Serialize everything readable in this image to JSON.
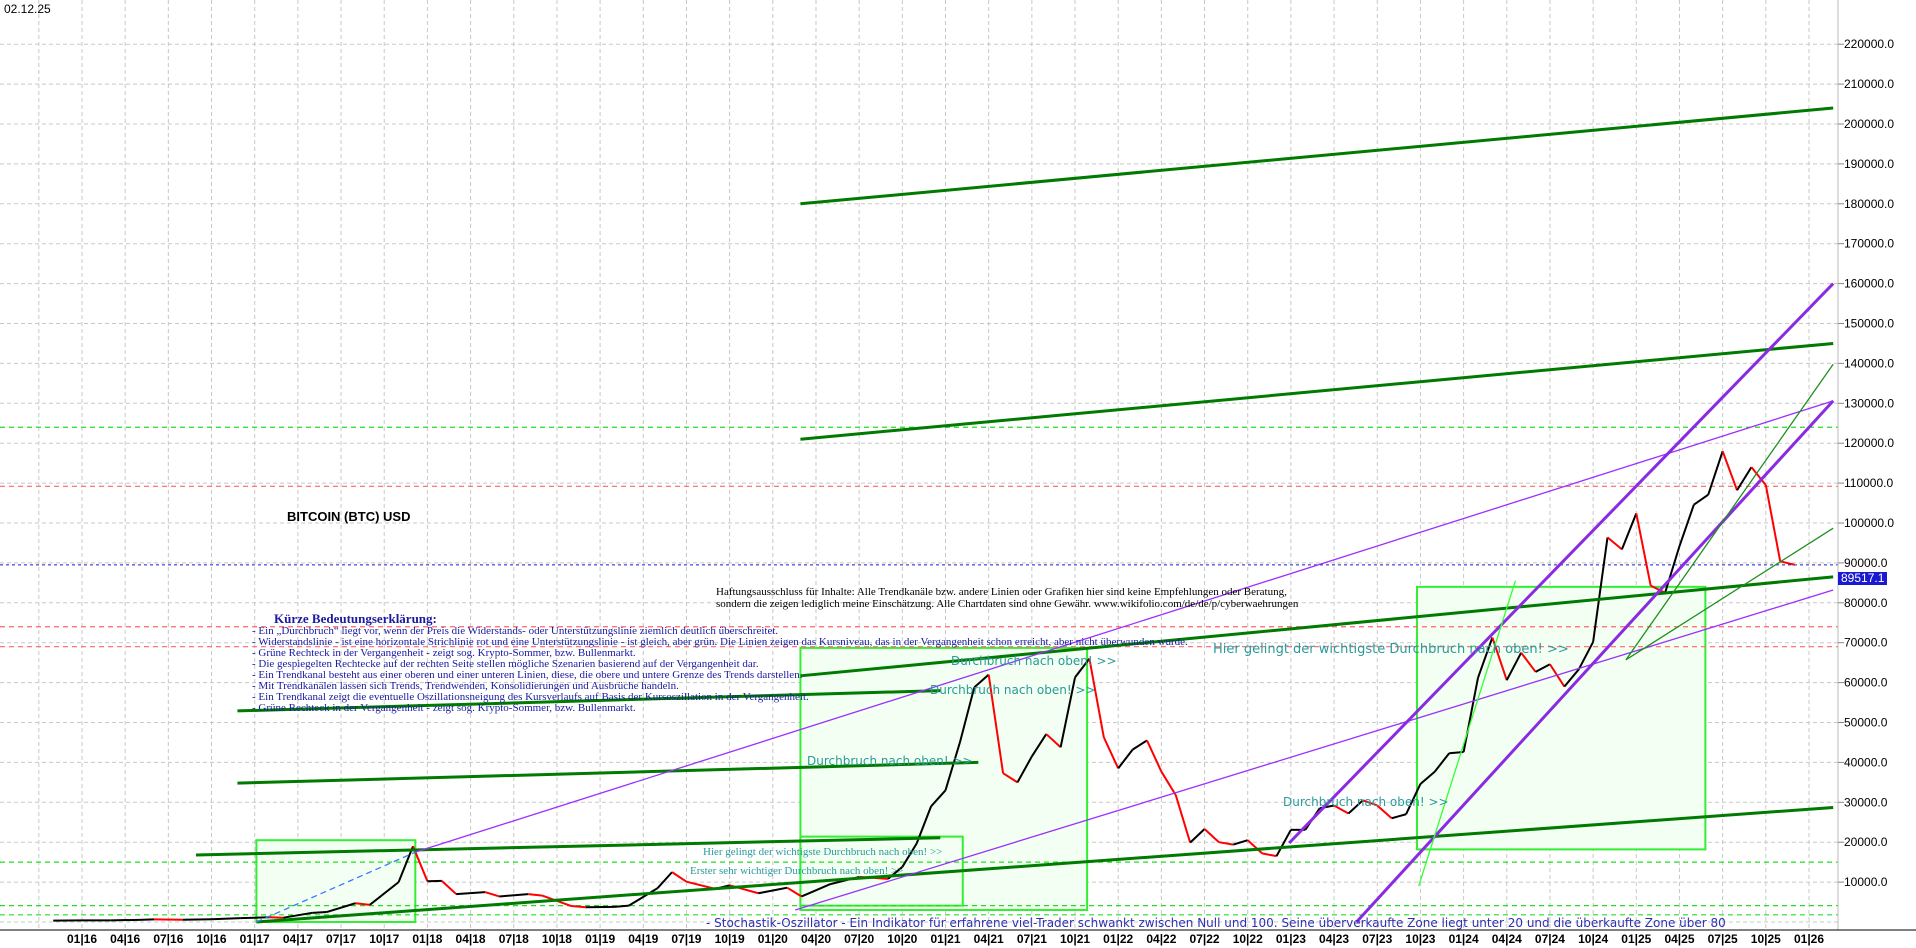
{
  "header": {
    "date": "02.12.25",
    "title": "BITCOIN (BTC) USD"
  },
  "legend": {
    "title": "Kürze Bedeutungserklärung:",
    "lines": [
      "- Ein „Durchbruch“ liegt vor, wenn der Preis die Widerstands- oder Unterstützungslinie ziemlich deutlich überschreitet.",
      "- Widerstandslinie - ist eine horizontale Strichlinie rot und eine Unterstützungslinie - ist gleich, aber grün. Die Linien zeigen das Kursniveau, das in der Vergangenheit schon erreicht, aber nicht überwunden wurde.",
      "- Grüne Rechteck in der Vergangenheit - zeigt sog. Krypto-Sommer, bzw. Bullenmarkt.",
      "- Die gespiegelten Rechtecke auf der rechten Seite stellen mögliche Szenarien basierend auf der Vergangenheit dar.",
      "- Ein Trendkanal besteht aus einer oberen und einer unteren Linien, diese, die obere und untere Grenze des Trends darstellen.",
      "- Mit Trendkanälen lassen sich Trends, Trendwenden, Konsolidierungen und Ausbrüche handeln.",
      " - Ein Trendkanal  zeigt die eventuelle Oszillationsneigung  des Kursverlaufs  auf Basis der Kursoszillation in der Vergangenheit.",
      " - Grüne Rechteck in der Vergangenheit - zeigt sog. Krypto-Sommer, bzw. Bullenmarkt."
    ]
  },
  "disclaimer": [
    "Haftungsausschluss für Inhalte: Alle Trendkanäle bzw. andere Linien oder Grafiken hier sind keine Empfehlungen oder Beratung,",
    "sondern die zeigen lediglich meine  Einschätzung. Alle Chartdaten sind ohne Gewähr.  www.wikifolio.com/de/de/p/cyberwaehrungen"
  ],
  "annotations": {
    "breakout": "Durchbruch nach oben! >>",
    "most_important": "Hier gelingt der wichtigste Durchbruch nach oben! >>",
    "first_important": "Erster sehr wichtiger Durchbruch nach oben! >>",
    "stochastic": "- Stochastik-Oszillator - Ein Indikator  für erfahrene viel-Trader  schwankt zwischen Null und 100. Seine überverkaufte Zone  liegt unter 20 und die überkaufte Zone  über 80"
  },
  "chart_data": {
    "type": "line",
    "title": "BITCOIN (BTC) USD",
    "last_price": "89517.1",
    "ylim": [
      0,
      225000
    ],
    "xlim": [
      "2015-11",
      "2026-04"
    ],
    "grid": true,
    "y_ticks": [
      "10000.0",
      "20000.0",
      "30000.0",
      "40000.0",
      "50000.0",
      "60000.0",
      "70000.0",
      "80000.0",
      "90000.0",
      "100000.0",
      "110000.0",
      "120000.0",
      "130000.0",
      "140000.0",
      "150000.0",
      "160000.0",
      "170000.0",
      "180000.0",
      "190000.0",
      "200000.0",
      "210000.0",
      "220000.0"
    ],
    "x_ticks": [
      "01|16",
      "04|16",
      "07|16",
      "10|16",
      "01|17",
      "04|17",
      "07|17",
      "10|17",
      "01|18",
      "04|18",
      "07|18",
      "10|18",
      "01|19",
      "04|19",
      "07|19",
      "10|19",
      "01|20",
      "04|20",
      "07|20",
      "10|20",
      "01|21",
      "04|21",
      "07|21",
      "10|21",
      "01|22",
      "04|22",
      "07|22",
      "10|22",
      "01|23",
      "04|23",
      "07|23",
      "10|23",
      "01|24",
      "04|24",
      "07|24",
      "10|24",
      "01|25",
      "04|25",
      "07|25",
      "10|25",
      "01|26"
    ],
    "series": [
      {
        "dates": [
          "2015-11",
          "2016-01",
          "2016-03",
          "2016-05",
          "2016-06",
          "2016-08",
          "2016-10",
          "2016-12",
          "2017-02",
          "2017-03",
          "2017-05",
          "2017-06",
          "2017-08",
          "2017-09",
          "2017-11",
          "2017-12",
          "2018-01",
          "2018-02",
          "2018-03",
          "2018-05",
          "2018-06",
          "2018-08",
          "2018-09",
          "2018-11",
          "2018-12",
          "2019-02",
          "2019-03",
          "2019-05",
          "2019-06",
          "2019-07",
          "2019-09",
          "2019-10",
          "2019-12",
          "2020-02",
          "2020-03",
          "2020-05",
          "2020-07",
          "2020-09",
          "2020-10",
          "2020-11",
          "2020-12",
          "2021-01",
          "2021-02",
          "2021-03",
          "2021-04",
          "2021-05",
          "2021-06",
          "2021-07",
          "2021-08",
          "2021-09",
          "2021-10",
          "2021-11",
          "2021-12",
          "2022-01",
          "2022-02",
          "2022-03",
          "2022-04",
          "2022-05",
          "2022-06",
          "2022-07",
          "2022-08",
          "2022-09",
          "2022-10",
          "2022-11",
          "2022-12",
          "2023-01",
          "2023-02",
          "2023-03",
          "2023-04",
          "2023-05",
          "2023-06",
          "2023-07",
          "2023-08",
          "2023-09",
          "2023-10",
          "2023-11",
          "2023-12",
          "2024-01",
          "2024-02",
          "2024-03",
          "2024-04",
          "2024-05",
          "2024-06",
          "2024-07",
          "2024-08",
          "2024-09",
          "2024-10",
          "2024-11",
          "2024-12",
          "2025-01",
          "2025-02",
          "2025-03",
          "2025-04",
          "2025-05",
          "2025-06",
          "2025-07",
          "2025-08",
          "2025-09",
          "2025-10",
          "2025-11",
          "2025-12"
        ],
        "values": [
          350,
          420,
          420,
          530,
          670,
          575,
          700,
          960,
          1190,
          1080,
          2300,
          2500,
          4700,
          4300,
          10000,
          19000,
          10200,
          10300,
          7000,
          7500,
          6400,
          7000,
          6600,
          4000,
          3700,
          3800,
          4100,
          8500,
          12500,
          10100,
          8300,
          9200,
          7200,
          8600,
          6400,
          9500,
          11300,
          10800,
          13800,
          19700,
          29000,
          33000,
          45000,
          58800,
          62000,
          37300,
          35000,
          41500,
          47100,
          43800,
          61300,
          66000,
          46300,
          38500,
          43200,
          45500,
          37700,
          31800,
          19900,
          23300,
          20000,
          19400,
          20500,
          17200,
          16500,
          23100,
          23100,
          28500,
          29200,
          27200,
          30500,
          29200,
          26000,
          27000,
          34600,
          37700,
          42300,
          42600,
          61200,
          71300,
          60600,
          67500,
          62700,
          64600,
          59000,
          63300,
          70200,
          96400,
          93400,
          102400,
          84300,
          82500,
          94200,
          104600,
          107100,
          118000,
          108200,
          114000,
          109500,
          90400,
          89517
        ]
      }
    ],
    "trendlines": [
      {
        "color": "#007a00",
        "weight": "thick",
        "from": [
          "2020.16",
          180000
        ],
        "to": [
          "2026.14",
          204000
        ]
      },
      {
        "color": "#007a00",
        "weight": "thick",
        "from": [
          "2020.16",
          121000
        ],
        "to": [
          "2026.14",
          145000
        ]
      },
      {
        "color": "#007a00",
        "weight": "thick",
        "from": [
          "2020.16",
          61700
        ],
        "to": [
          "2026.14",
          86500
        ]
      },
      {
        "color": "#007a00",
        "weight": "thick",
        "from": [
          "2016.90",
          52900
        ],
        "to": [
          "2020.97",
          58000
        ]
      },
      {
        "color": "#007a00",
        "weight": "thick",
        "from": [
          "2016.90",
          34800
        ],
        "to": [
          "2021.19",
          40000
        ]
      },
      {
        "color": "#007a00",
        "weight": "thick",
        "from": [
          "2016.66",
          16800
        ],
        "to": [
          "2020.97",
          21100
        ]
      },
      {
        "color": "#007a00",
        "weight": "thick",
        "from": [
          "2017.01",
          0
        ],
        "to": [
          "2026.14",
          28700
        ]
      },
      {
        "color": "#9b30ff",
        "weight": "thin",
        "from": [
          "2017.93",
          17500
        ],
        "to": [
          "2026.14",
          130600
        ]
      },
      {
        "color": "#9b30ff",
        "weight": "thin",
        "from": [
          "2020.13",
          3000
        ],
        "to": [
          "2026.14",
          83200
        ]
      },
      {
        "color": "#8a2be2",
        "weight": "thick",
        "from": [
          "2022.99",
          19800
        ],
        "to": [
          "2026.14",
          160000
        ]
      },
      {
        "color": "#8a2be2",
        "weight": "thick",
        "from": [
          "2023.38",
          0
        ],
        "to": [
          "2026.14",
          130600
        ]
      },
      {
        "color": "#3a7aff",
        "weight": "dashed",
        "from": [
          "2017.01",
          0
        ],
        "to": [
          "2017.93",
          17500
        ]
      },
      {
        "color": "#1f8f1f",
        "weight": "thin",
        "from": [
          "2024.94",
          65700
        ],
        "to": [
          "2026.14",
          139800
        ]
      },
      {
        "color": "#1f8f1f",
        "weight": "thin",
        "from": [
          "2024.94",
          65700
        ],
        "to": [
          "2026.14",
          98700
        ]
      },
      {
        "color": "#33ff33",
        "weight": "thin",
        "from": [
          "2023.74",
          9000
        ],
        "to": [
          "2024.30",
          85500
        ]
      }
    ],
    "levels": [
      {
        "color": "#22dd22",
        "price": 124000
      },
      {
        "color": "#ff6666",
        "price": 109200
      },
      {
        "color": "#ff6666",
        "price": 74000
      },
      {
        "color": "#ff6666",
        "price": 69000
      },
      {
        "color": "#22dd22",
        "price": 15000
      },
      {
        "color": "#22dd22",
        "price": 4100
      },
      {
        "color": "#22dd22",
        "price": 1800
      }
    ],
    "boxes": [
      {
        "from": "2017.01",
        "to": "2017.93",
        "low": 0,
        "high": 20500
      },
      {
        "from": "2020.16",
        "to": "2021.82",
        "low": 3000,
        "high": 68700
      },
      {
        "from": "2020.16",
        "to": "2021.10",
        "low": 4100,
        "high": 21400
      },
      {
        "from": "2023.73",
        "to": "2025.40",
        "low": 18200,
        "high": 84000
      }
    ],
    "colors": {
      "up": "#000000",
      "down": "#ff0000",
      "box_fill": "#f2fff2",
      "box_edge": "#33ee33",
      "last_price": "#1a1ad0"
    }
  }
}
